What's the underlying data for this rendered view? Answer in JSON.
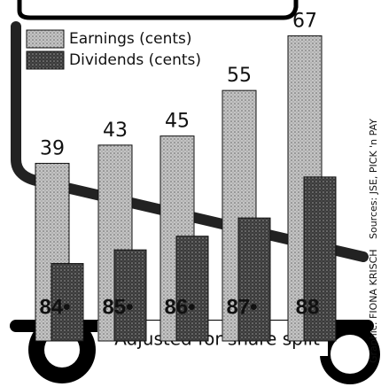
{
  "chart_data": {
    "type": "bar",
    "categories": [
      "84•",
      "85•",
      "86•",
      "87•",
      "88"
    ],
    "series": [
      {
        "name": "Earnings (cents)",
        "color": "#b8b8b8",
        "values": [
          39,
          43,
          45,
          55,
          67
        ]
      },
      {
        "name": "Dividends (cents)",
        "color": "#3a3a3a",
        "values": [
          17,
          20,
          23,
          27,
          36
        ]
      }
    ],
    "ylim": [
      0,
      70
    ],
    "footnote": "*Adjusted for share split",
    "credit": "Graphic: FIONA KRISCH",
    "source": "Sources: JSE, PICK 'n PAY"
  }
}
